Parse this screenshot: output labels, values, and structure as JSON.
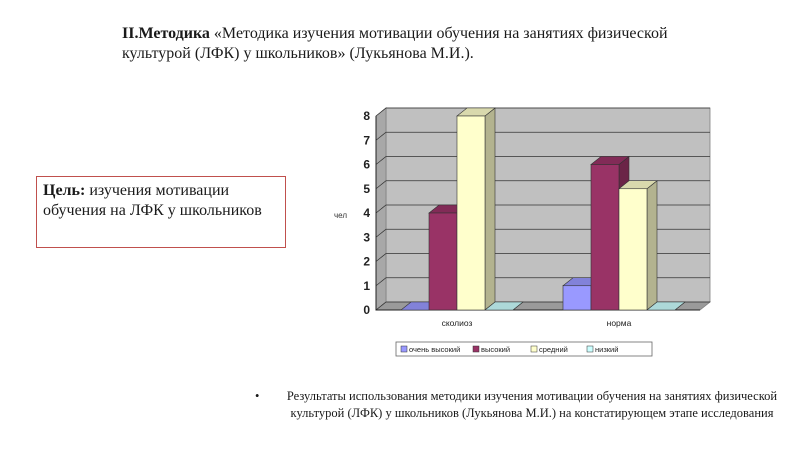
{
  "title": {
    "bold": "II.Методика",
    "rest": " «Методика изучения мотивации обучения на занятиях физической культурой (ЛФК) у школьников» (Лукьянова М.И.)."
  },
  "goal": {
    "bold": "Цель:",
    "rest": " изучения мотивации обучения на ЛФК у школьников"
  },
  "caption": {
    "bullet": "•",
    "text": "Результаты использования методики изучения мотивации обучения на занятиях физической культурой (ЛФК) у школьников (Лукьянова М.И.) на констатирующем этапе исследования"
  },
  "chart_data": {
    "type": "bar",
    "categories": [
      "сколиоз",
      "норма"
    ],
    "series": [
      {
        "name": "очень высокий",
        "values": [
          0,
          1
        ],
        "color": "#9999ff"
      },
      {
        "name": "высокий",
        "values": [
          4,
          6
        ],
        "color": "#993366"
      },
      {
        "name": "средний",
        "values": [
          8,
          5
        ],
        "color": "#ffffcc"
      },
      {
        "name": "низкий",
        "values": [
          0,
          0
        ],
        "color": "#ccffff"
      }
    ],
    "yticks": [
      "0",
      "1",
      "2",
      "3",
      "4",
      "5",
      "6",
      "7",
      "8"
    ],
    "ylim": [
      0,
      8
    ],
    "ylabel": "чел",
    "xlabel": "",
    "grid": true,
    "legend": "bottom",
    "style": "3d-bar"
  }
}
